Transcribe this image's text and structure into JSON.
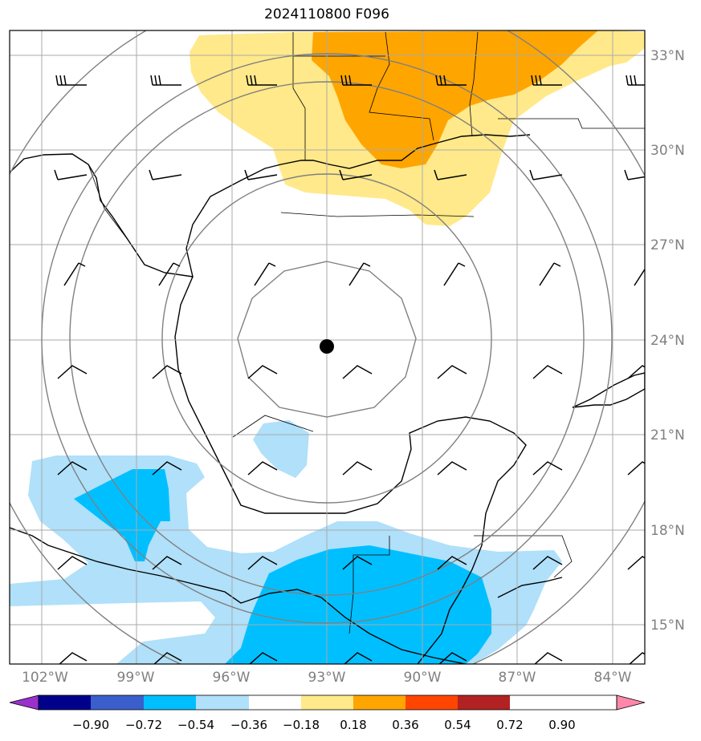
{
  "title": "2024110800 F096",
  "lon_labels": [
    "102°W",
    "99°W",
    "96°W",
    "93°W",
    "90°W",
    "87°W",
    "84°W"
  ],
  "lat_labels": [
    "33°N",
    "30°N",
    "27°N",
    "24°N",
    "21°N",
    "18°N",
    "15°N"
  ],
  "lon_values": [
    -102,
    -99,
    -96,
    -93,
    -90,
    -87,
    -84
  ],
  "lat_values": [
    33,
    30,
    27,
    24,
    21,
    18,
    15
  ],
  "map_extent": {
    "lon_min": -103,
    "lon_max": -83,
    "lat_min": 14,
    "lat_max": 34
  },
  "center_marker": {
    "lon": -93,
    "lat": 23.8
  },
  "colorbar": {
    "tick_labels": [
      "−0.90",
      "−0.72",
      "−0.54",
      "−0.36",
      "−0.18",
      "0.18",
      "0.36",
      "0.54",
      "0.72",
      "0.90"
    ],
    "colors": [
      "#9932cc",
      "#00008b",
      "#3a5fcd",
      "#00bfff",
      "#b0e0fa",
      "#ffffff",
      "#ffe98a",
      "#ffa500",
      "#ff4500",
      "#b22222",
      "#ff88aa"
    ]
  },
  "colors": {
    "grid": "#aaaaaa",
    "range_rings": "#808080",
    "coast": "#000000",
    "axis_label": "#808080"
  }
}
